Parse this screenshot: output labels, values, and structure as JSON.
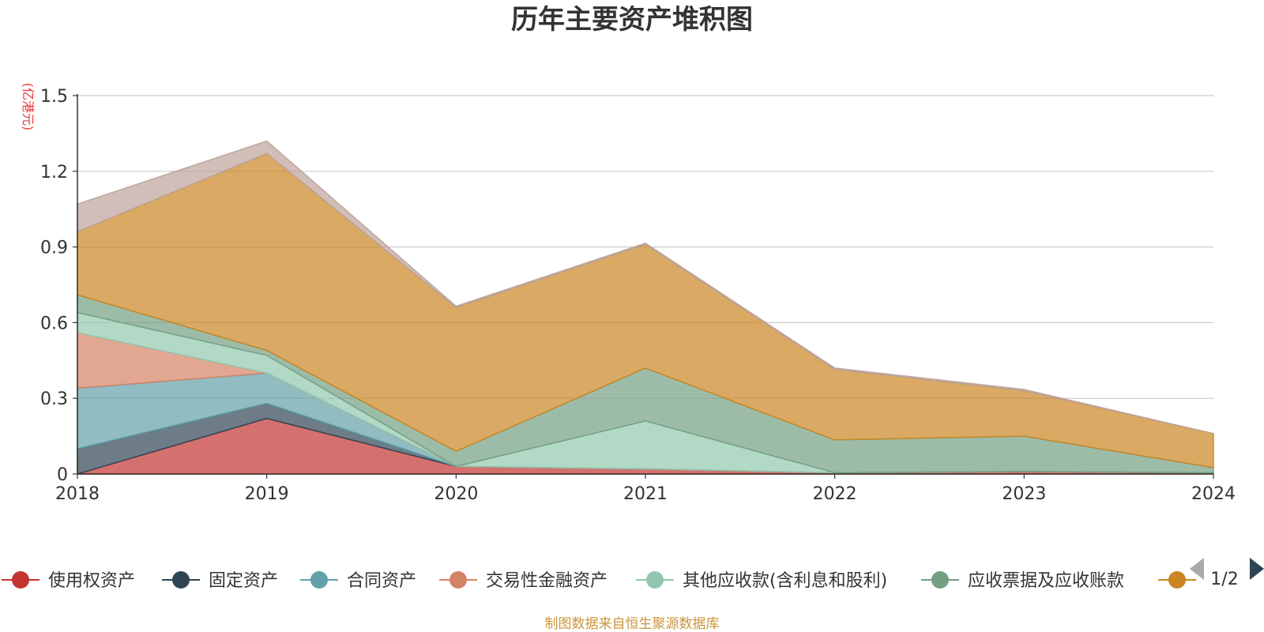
{
  "chart_data": {
    "type": "area",
    "title": "历年主要资产堆积图",
    "y_unit": "(亿港元)",
    "x": [
      "2018",
      "2019",
      "2020",
      "2021",
      "2022",
      "2023",
      "2024"
    ],
    "ylim": [
      0,
      1.5
    ],
    "yticks": [
      "0",
      "0.3",
      "0.6",
      "0.9",
      "1.2",
      "1.5"
    ],
    "stacked": true,
    "grid": true,
    "legend_position": "bottom",
    "legend_page": "1/2",
    "series": [
      {
        "name": "使用权资产",
        "color": "#c23531",
        "values": [
          0.0,
          0.22,
          0.03,
          0.02,
          0.005,
          0.01,
          0.005
        ]
      },
      {
        "name": "固定资产",
        "color": "#2f4554",
        "values": [
          0.1,
          0.06,
          0.0,
          0.0,
          0.0,
          0.0,
          0.0
        ]
      },
      {
        "name": "合同资产",
        "color": "#61a0a8",
        "values": [
          0.24,
          0.12,
          0.0,
          0.0,
          0.0,
          0.0,
          0.0
        ]
      },
      {
        "name": "交易性金融资产",
        "color": "#d48265",
        "values": [
          0.22,
          0.0,
          0.0,
          0.0,
          0.0,
          0.0,
          0.0
        ]
      },
      {
        "name": "其他应收款(含利息和股利)",
        "color": "#91c7ae",
        "values": [
          0.08,
          0.07,
          0.0,
          0.19,
          0.0,
          0.0,
          0.0
        ]
      },
      {
        "name": "应收票据及应收账款",
        "color": "#749f83",
        "values": [
          0.07,
          0.02,
          0.06,
          0.21,
          0.13,
          0.14,
          0.02
        ]
      },
      {
        "name": "",
        "color": "#ca8622",
        "values": [
          0.25,
          0.78,
          0.57,
          0.49,
          0.28,
          0.18,
          0.135
        ]
      },
      {
        "name": "",
        "color": "#bda29a",
        "values": [
          0.11,
          0.05,
          0.005,
          0.005,
          0.005,
          0.005,
          0.0
        ]
      }
    ],
    "source": "制图数据来自恒生聚源数据库"
  }
}
